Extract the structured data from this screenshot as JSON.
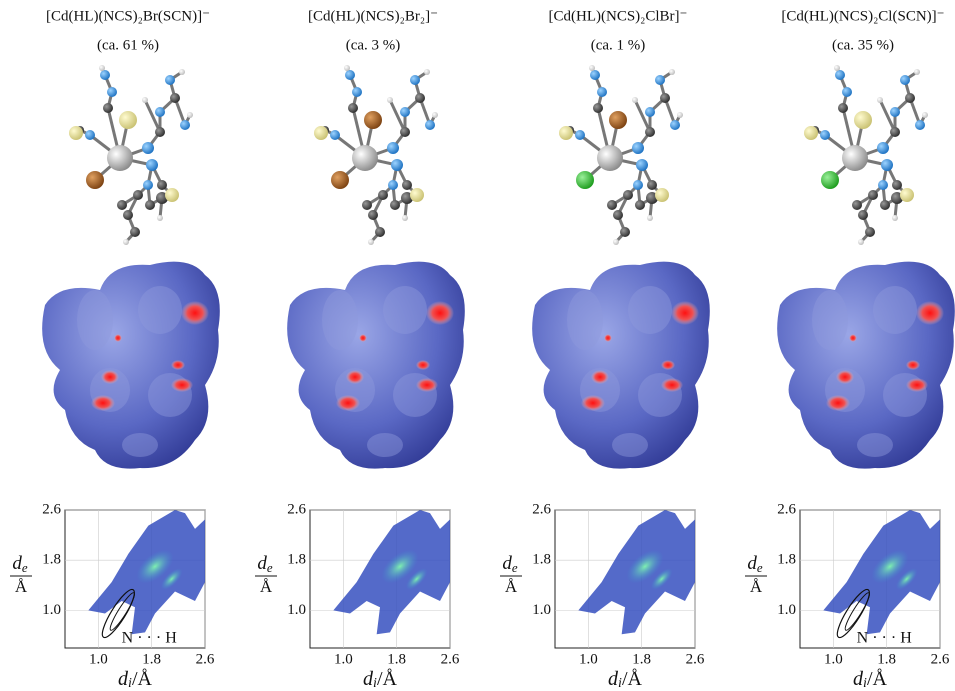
{
  "panels": [
    {
      "title": "[Cd(HL)(NCS)₂Br(SCN)]⁻",
      "share": "(ca. 61 %)",
      "fingerprint": {
        "xlim": [
          0.5,
          2.6
        ],
        "ylim": [
          0.4,
          2.6
        ],
        "xticks": [
          {
            "value": 1.0,
            "label": "1.0"
          },
          1.8,
          2.6
        ],
        "yticks": [
          {
            "value": 1.0,
            "label": "1.0"
          },
          1.8,
          2.6
        ],
        "xlabel": {
          "symbol": "d",
          "sub": "i",
          "unit": "/Å"
        },
        "ylabel": {
          "symbol": "d",
          "sub": "e",
          "unit": "Å"
        },
        "annotation": "N · · · H"
      }
    },
    {
      "title": "[Cd(HL)(NCS)₂Br₂]⁻",
      "share": "(ca. 3 %)",
      "fingerprint": {
        "xlim": [
          0.5,
          2.6
        ],
        "ylim": [
          0.4,
          2.6
        ],
        "xticks": [
          {
            "value": 1.0,
            "label": "1.0"
          },
          1.8,
          2.6
        ],
        "yticks": [
          {
            "value": 1.0,
            "label": "1.0"
          },
          1.8,
          2.6
        ],
        "xlabel": {
          "symbol": "d",
          "sub": "i",
          "unit": "/Å"
        },
        "ylabel": {
          "symbol": "d",
          "sub": "e",
          "unit": "Å"
        }
      }
    },
    {
      "title": "[Cd(HL)(NCS)₂ClBr]⁻",
      "share": "(ca. 1 %)",
      "fingerprint": {
        "xlim": [
          0.5,
          2.6
        ],
        "ylim": [
          0.4,
          2.6
        ],
        "xticks": [
          {
            "value": 1.0,
            "label": "1.0"
          },
          1.8,
          2.6
        ],
        "yticks": [
          {
            "value": 1.0,
            "label": "1.0"
          },
          1.8,
          2.6
        ],
        "xlabel": {
          "symbol": "d",
          "sub": "i",
          "unit": "/Å"
        },
        "ylabel": {
          "symbol": "d",
          "sub": "e",
          "unit": "Å"
        }
      }
    },
    {
      "title": "[Cd(HL)(NCS)₂Cl(SCN)]⁻",
      "share": "(ca. 35 %)",
      "fingerprint": {
        "xlim": [
          0.5,
          2.6
        ],
        "ylim": [
          0.4,
          2.6
        ],
        "xticks": [
          {
            "value": 1.0,
            "label": "1.0"
          },
          1.8,
          2.6
        ],
        "yticks": [
          {
            "value": 1.0,
            "label": "1.0"
          },
          1.8,
          2.6
        ],
        "xlabel": {
          "symbol": "d",
          "sub": "i",
          "unit": "/Å"
        },
        "ylabel": {
          "symbol": "d",
          "sub": "e",
          "unit": "Å"
        },
        "annotation": "N · · · H"
      }
    }
  ]
}
